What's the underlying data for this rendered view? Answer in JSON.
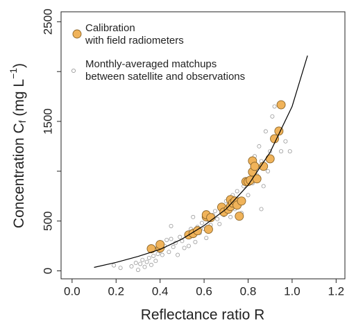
{
  "chart_data": {
    "type": "scatter",
    "xlabel": "Reflectance ratio R",
    "ylabel": {
      "text": "Concentration C",
      "sub": "f",
      "text2": " (mg L",
      "sup": "−1",
      "text3": ")"
    },
    "xlim": [
      -0.05,
      1.24
    ],
    "ylim": [
      -80,
      2600
    ],
    "xticks": [
      {
        "value": 0,
        "label": "0.0"
      },
      0.2,
      0.4,
      0.6,
      0.8,
      {
        "value": 1,
        "label": "1.0"
      },
      1.2
    ],
    "yticks": [
      0,
      500,
      1500,
      2500
    ],
    "yminor_ticks": [
      1000,
      2000
    ],
    "legend_position": "upper left",
    "series": [
      {
        "name": [
          "Calibration",
          "with field radiometers"
        ],
        "color": "#f0b35a",
        "edge": "#8a6428",
        "marker": "large",
        "x": [
          0.36,
          0.4,
          0.4,
          0.53,
          0.55,
          0.57,
          0.61,
          0.61,
          0.63,
          0.62,
          0.68,
          0.69,
          0.71,
          0.72,
          0.72,
          0.73,
          0.74,
          0.75,
          0.77,
          0.76,
          0.79,
          0.8,
          0.82,
          0.82,
          0.83,
          0.81,
          0.84,
          0.87,
          0.9,
          0.92,
          0.94,
          0.95
        ],
        "y": [
          222,
          229,
          264,
          361,
          375,
          403,
          542,
          563,
          535,
          417,
          639,
          590,
          618,
          646,
          715,
          681,
          701,
          660,
          701,
          549,
          896,
          896,
          993,
          1104,
          1049,
          910,
          924,
          1049,
          1125,
          1326,
          1403,
          1667
        ]
      },
      {
        "name": [
          "Monthly-averaged matchups",
          "between satellite and observations"
        ],
        "color": "#ffffff",
        "edge": "#9a9a9a",
        "marker": "small",
        "x": [
          0.19,
          0.22,
          0.27,
          0.29,
          0.3,
          0.31,
          0.32,
          0.33,
          0.34,
          0.35,
          0.36,
          0.37,
          0.38,
          0.39,
          0.4,
          0.41,
          0.42,
          0.43,
          0.44,
          0.45,
          0.46,
          0.47,
          0.48,
          0.49,
          0.5,
          0.51,
          0.52,
          0.53,
          0.54,
          0.55,
          0.56,
          0.57,
          0.58,
          0.59,
          0.6,
          0.61,
          0.62,
          0.63,
          0.64,
          0.65,
          0.66,
          0.67,
          0.68,
          0.69,
          0.7,
          0.71,
          0.72,
          0.73,
          0.74,
          0.75,
          0.76,
          0.77,
          0.78,
          0.79,
          0.8,
          0.81,
          0.82,
          0.83,
          0.84,
          0.85,
          0.86,
          0.87,
          0.88,
          0.89,
          0.9,
          0.91,
          0.92,
          0.93,
          0.95,
          0.97,
          0.99,
          0.75,
          0.86,
          0.55,
          0.45
        ],
        "y": [
          55,
          30,
          45,
          80,
          10,
          70,
          110,
          40,
          90,
          130,
          60,
          150,
          100,
          170,
          200,
          160,
          250,
          310,
          190,
          320,
          240,
          280,
          160,
          340,
          300,
          230,
          370,
          250,
          420,
          350,
          290,
          440,
          380,
          480,
          420,
          330,
          510,
          460,
          560,
          600,
          520,
          470,
          650,
          560,
          700,
          640,
          540,
          760,
          620,
          800,
          720,
          580,
          850,
          920,
          760,
          1000,
          880,
          1150,
          960,
          1250,
          1100,
          850,
          1400,
          1000,
          1200,
          1550,
          1650,
          1350,
          1200,
          1300,
          1200,
          550,
          620,
          540,
          450
        ]
      }
    ],
    "fit": {
      "color": "#000000",
      "x": [
        0.1,
        0.2,
        0.3,
        0.4,
        0.5,
        0.6,
        0.7,
        0.8,
        0.9,
        1.0,
        1.07
      ],
      "y": [
        35,
        85,
        145,
        215,
        320,
        455,
        620,
        860,
        1190,
        1650,
        2160
      ]
    }
  }
}
